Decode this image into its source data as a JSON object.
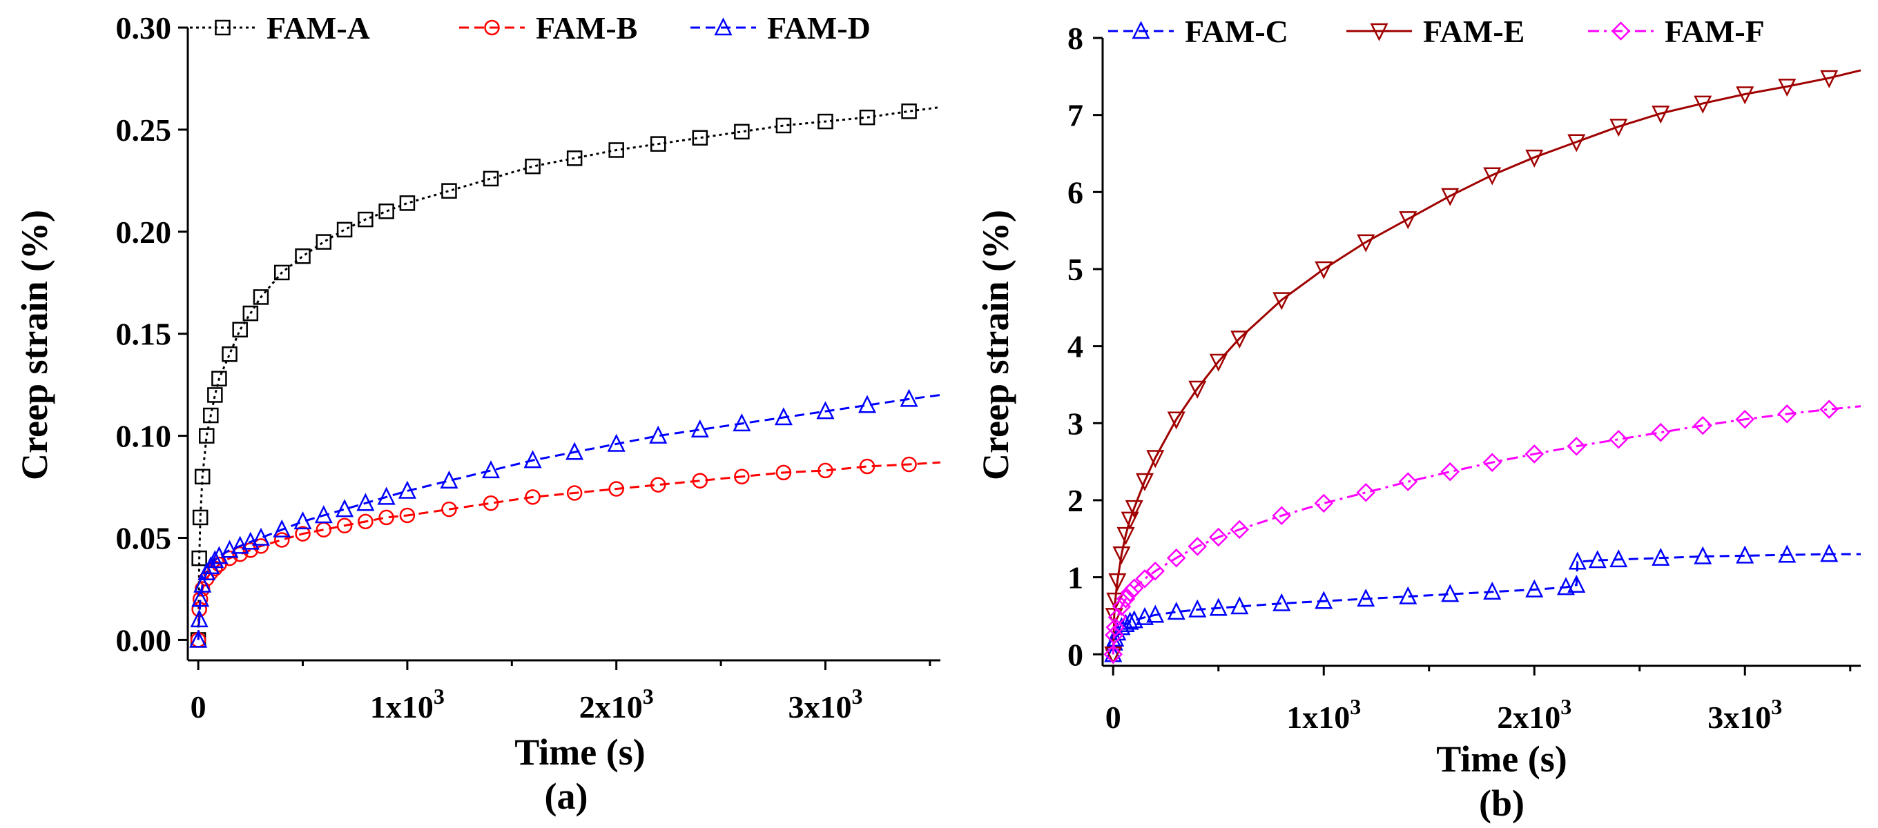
{
  "chart_data": [
    {
      "type": "line",
      "panel_label": "(a)",
      "xlabel": "Time (s)",
      "ylabel": "Creep strain (%)",
      "xlim": [
        -50,
        3550
      ],
      "ylim": [
        -0.01,
        0.3
      ],
      "x_ticks": [
        0,
        1000,
        2000,
        3000
      ],
      "x_tick_labels": [
        "0",
        "1x10",
        "2x10",
        "3x10"
      ],
      "x_tick_exp": "3",
      "y_ticks": [
        0,
        0.05,
        0.1,
        0.15,
        0.2,
        0.25,
        0.3
      ],
      "y_tick_labels": [
        "0.00",
        "0.05",
        "0.10",
        "0.15",
        "0.20",
        "0.25",
        "0.30"
      ],
      "legend_position": "top",
      "series": [
        {
          "name": "FAM-A",
          "color": "#000000",
          "marker": "square",
          "dash": "dotted",
          "x": [
            0,
            5,
            10,
            20,
            40,
            60,
            80,
            100,
            150,
            200,
            250,
            300,
            400,
            500,
            600,
            700,
            800,
            900,
            1000,
            1200,
            1400,
            1600,
            1800,
            2000,
            2200,
            2400,
            2600,
            2800,
            3000,
            3200,
            3400,
            3550
          ],
          "y": [
            0.0,
            0.04,
            0.06,
            0.08,
            0.1,
            0.11,
            0.12,
            0.128,
            0.14,
            0.152,
            0.16,
            0.168,
            0.18,
            0.188,
            0.195,
            0.201,
            0.206,
            0.21,
            0.214,
            0.22,
            0.226,
            0.232,
            0.236,
            0.24,
            0.243,
            0.246,
            0.249,
            0.252,
            0.254,
            0.256,
            0.259,
            0.261
          ]
        },
        {
          "name": "FAM-B",
          "color": "#ff0000",
          "marker": "circle",
          "dash": "dashed",
          "x": [
            0,
            5,
            10,
            20,
            40,
            60,
            80,
            100,
            150,
            200,
            250,
            300,
            400,
            500,
            600,
            700,
            800,
            900,
            1000,
            1200,
            1400,
            1600,
            1800,
            2000,
            2200,
            2400,
            2600,
            2800,
            3000,
            3200,
            3400,
            3550
          ],
          "y": [
            0.0,
            0.015,
            0.02,
            0.025,
            0.03,
            0.033,
            0.035,
            0.037,
            0.04,
            0.042,
            0.044,
            0.046,
            0.049,
            0.052,
            0.054,
            0.056,
            0.058,
            0.06,
            0.061,
            0.064,
            0.067,
            0.07,
            0.072,
            0.074,
            0.076,
            0.078,
            0.08,
            0.082,
            0.083,
            0.085,
            0.086,
            0.087
          ]
        },
        {
          "name": "FAM-D",
          "color": "#0000ff",
          "marker": "triangle-up",
          "dash": "dashed",
          "x": [
            0,
            5,
            10,
            20,
            40,
            60,
            80,
            100,
            150,
            200,
            250,
            300,
            400,
            500,
            600,
            700,
            800,
            900,
            1000,
            1200,
            1400,
            1600,
            1800,
            2000,
            2200,
            2400,
            2600,
            2800,
            3000,
            3200,
            3400,
            3550
          ],
          "y": [
            0.0,
            0.01,
            0.02,
            0.027,
            0.033,
            0.036,
            0.039,
            0.041,
            0.044,
            0.046,
            0.048,
            0.05,
            0.054,
            0.058,
            0.061,
            0.064,
            0.067,
            0.07,
            0.073,
            0.078,
            0.083,
            0.088,
            0.092,
            0.096,
            0.1,
            0.103,
            0.106,
            0.109,
            0.112,
            0.115,
            0.118,
            0.12
          ]
        }
      ]
    },
    {
      "type": "line",
      "panel_label": "(b)",
      "xlabel": "Time (s)",
      "ylabel": "Creep strain (%)",
      "xlim": [
        -50,
        3550
      ],
      "ylim": [
        -0.15,
        8
      ],
      "x_ticks": [
        0,
        1000,
        2000,
        3000
      ],
      "x_tick_labels": [
        "0",
        "1x10",
        "2x10",
        "3x10"
      ],
      "x_tick_exp": "3",
      "y_ticks": [
        0,
        1,
        2,
        3,
        4,
        5,
        6,
        7,
        8
      ],
      "y_tick_labels": [
        "0",
        "1",
        "2",
        "3",
        "4",
        "5",
        "6",
        "7",
        "8"
      ],
      "legend_position": "top",
      "series": [
        {
          "name": "FAM-C",
          "color": "#0000ff",
          "marker": "triangle-up",
          "dash": "dashed",
          "x": [
            0,
            5,
            10,
            20,
            40,
            60,
            80,
            100,
            150,
            200,
            300,
            400,
            500,
            600,
            800,
            1000,
            1200,
            1400,
            1600,
            1800,
            2000,
            2150,
            2200,
            2205,
            2300,
            2400,
            2600,
            2800,
            3000,
            3200,
            3400,
            3550
          ],
          "y": [
            0.0,
            0.15,
            0.2,
            0.28,
            0.35,
            0.39,
            0.42,
            0.44,
            0.48,
            0.51,
            0.55,
            0.58,
            0.6,
            0.62,
            0.66,
            0.69,
            0.72,
            0.75,
            0.78,
            0.81,
            0.84,
            0.87,
            0.9,
            1.2,
            1.22,
            1.23,
            1.25,
            1.27,
            1.28,
            1.29,
            1.3,
            1.3
          ]
        },
        {
          "name": "FAM-E",
          "color": "#a00000",
          "marker": "triangle-down",
          "dash": "solid",
          "x": [
            0,
            5,
            10,
            20,
            40,
            60,
            80,
            100,
            150,
            200,
            300,
            400,
            500,
            600,
            800,
            1000,
            1200,
            1400,
            1600,
            1800,
            2000,
            2200,
            2400,
            2600,
            2800,
            3000,
            3200,
            3400,
            3550
          ],
          "y": [
            0.0,
            0.5,
            0.7,
            0.95,
            1.3,
            1.55,
            1.75,
            1.9,
            2.25,
            2.55,
            3.05,
            3.45,
            3.8,
            4.1,
            4.6,
            5.0,
            5.35,
            5.65,
            5.95,
            6.22,
            6.45,
            6.65,
            6.85,
            7.02,
            7.15,
            7.27,
            7.37,
            7.48,
            7.58
          ]
        },
        {
          "name": "FAM-F",
          "color": "#ff00ff",
          "marker": "diamond",
          "dash": "dashdot",
          "x": [
            0,
            5,
            10,
            20,
            40,
            60,
            80,
            100,
            150,
            200,
            300,
            400,
            500,
            600,
            800,
            1000,
            1200,
            1400,
            1600,
            1800,
            2000,
            2200,
            2400,
            2600,
            2800,
            3000,
            3200,
            3400,
            3550
          ],
          "y": [
            0.0,
            0.25,
            0.35,
            0.48,
            0.62,
            0.72,
            0.8,
            0.86,
            0.98,
            1.08,
            1.25,
            1.4,
            1.52,
            1.62,
            1.8,
            1.96,
            2.1,
            2.24,
            2.37,
            2.49,
            2.6,
            2.7,
            2.79,
            2.88,
            2.97,
            3.05,
            3.12,
            3.18,
            3.22
          ]
        }
      ]
    }
  ]
}
